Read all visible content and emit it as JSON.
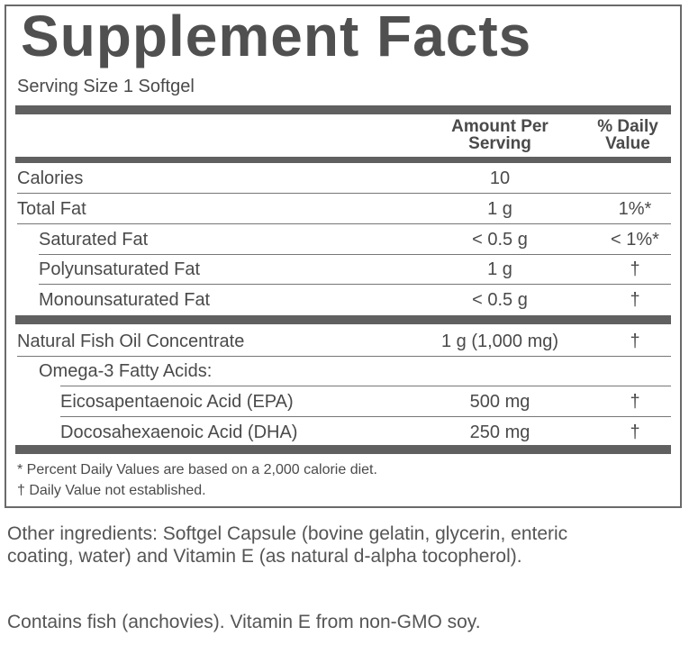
{
  "header": {
    "title": "Supplement Facts",
    "serving_size": "Serving Size 1 Softgel"
  },
  "table": {
    "columns": [
      "Amount Per Serving",
      "% Daily Value"
    ],
    "rows": [
      [
        "Calories",
        "10",
        null
      ],
      [
        "Total Fat",
        "1 g",
        "1%*"
      ],
      [
        "Saturated Fat",
        "< 0.5 g",
        "< 1%*"
      ],
      [
        "Polyunsaturated Fat",
        "1 g",
        "†"
      ],
      [
        "Monounsaturated Fat",
        "< 0.5 g",
        "†"
      ],
      [
        "Natural Fish Oil Concentrate",
        "1 g (1,000 mg)",
        "†"
      ],
      [
        "Omega-3 Fatty Acids:",
        null,
        null
      ],
      [
        "Eicosapentaenoic Acid (EPA)",
        "500 mg",
        "†"
      ],
      [
        "Docosahexaenoic Acid (DHA)",
        "250 mg",
        "†"
      ]
    ]
  },
  "footnotes": [
    "* Percent Daily Values are based on a 2,000 calorie diet.",
    "† Daily Value not established."
  ],
  "other_ingredients": "Other ingredients: Softgel Capsule (bovine gelatin, glycerin, enteric coating, water) and Vitamin E (as natural d-alpha tocopherol).",
  "allergen": "Contains fish (anchovies). Vitamin E from non-GMO soy."
}
